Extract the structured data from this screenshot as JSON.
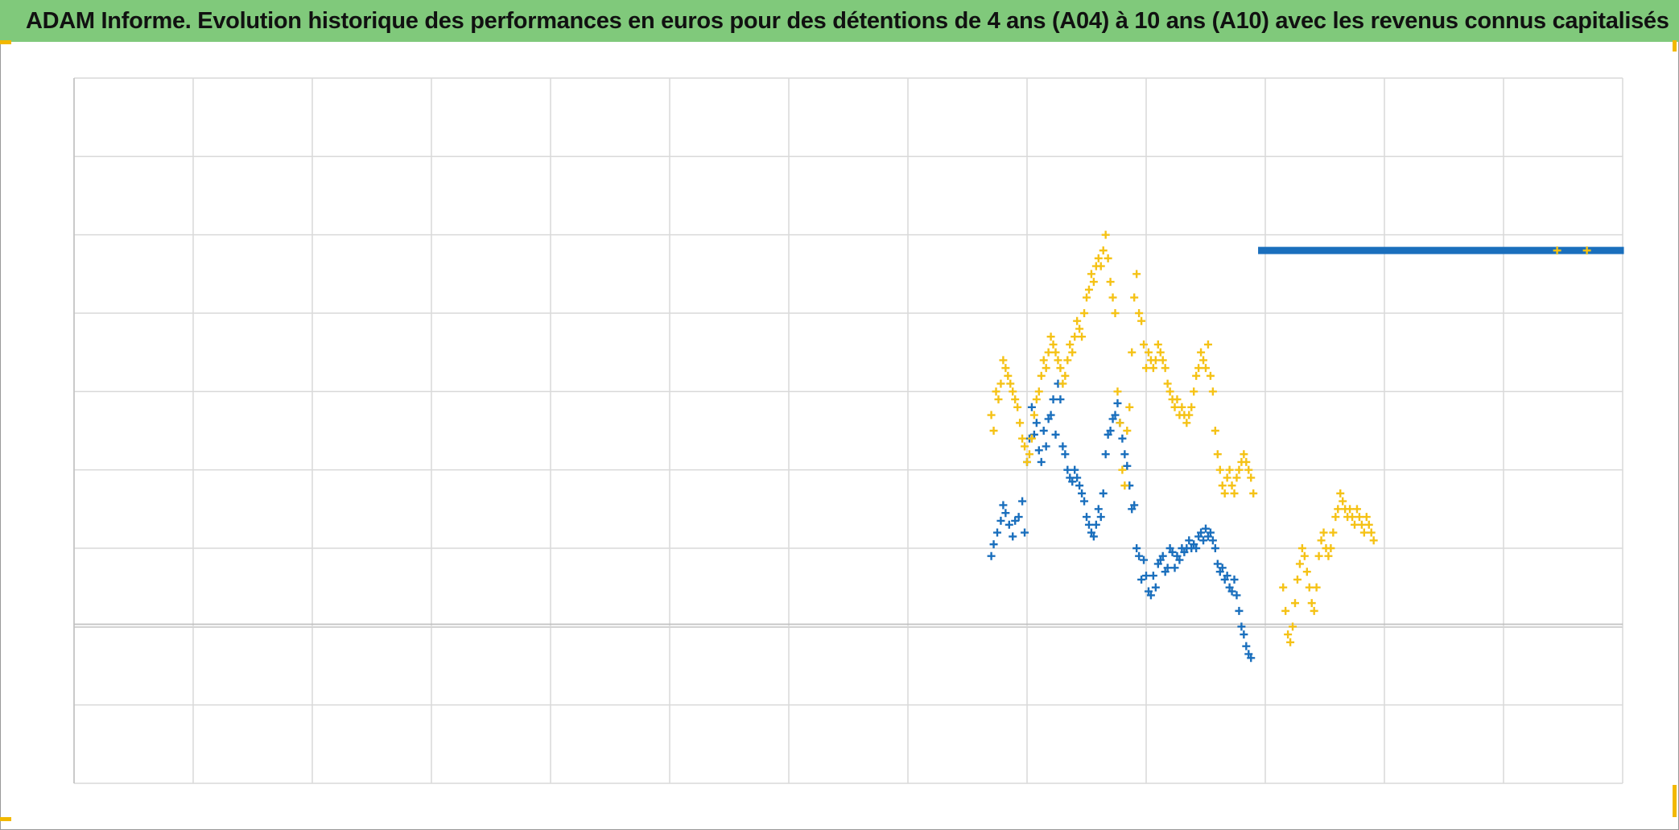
{
  "chart_data": {
    "type": "scatter",
    "title": "ADAM Informe. Evolution historique des performances en euros pour des détentions de 4 ans (A04) à 10 ans (A10) avec les revenus connus capitalisés",
    "xlabel": "",
    "ylabel": "",
    "xlim": [
      0,
      13
    ],
    "ylim": [
      -0.2,
      0.7
    ],
    "grid": true,
    "legend": "none",
    "baseline_y": 0,
    "series": [
      {
        "color": "#1a6fbd",
        "marker": "plus",
        "points": [
          [
            7.7,
            0.09
          ],
          [
            7.72,
            0.105
          ],
          [
            7.75,
            0.12
          ],
          [
            7.78,
            0.135
          ],
          [
            7.8,
            0.155
          ],
          [
            7.82,
            0.145
          ],
          [
            7.85,
            0.13
          ],
          [
            7.88,
            0.115
          ],
          [
            7.9,
            0.135
          ],
          [
            7.93,
            0.14
          ],
          [
            7.96,
            0.16
          ],
          [
            7.98,
            0.12
          ],
          [
            8.0,
            0.21
          ],
          [
            8.02,
            0.24
          ],
          [
            8.04,
            0.28
          ],
          [
            8.06,
            0.245
          ],
          [
            8.08,
            0.26
          ],
          [
            8.1,
            0.225
          ],
          [
            8.12,
            0.21
          ],
          [
            8.14,
            0.25
          ],
          [
            8.16,
            0.23
          ],
          [
            8.18,
            0.265
          ],
          [
            8.2,
            0.27
          ],
          [
            8.22,
            0.29
          ],
          [
            8.24,
            0.245
          ],
          [
            8.26,
            0.31
          ],
          [
            8.28,
            0.29
          ],
          [
            8.3,
            0.23
          ],
          [
            8.32,
            0.22
          ],
          [
            8.34,
            0.2
          ],
          [
            8.36,
            0.19
          ],
          [
            8.38,
            0.185
          ],
          [
            8.4,
            0.2
          ],
          [
            8.42,
            0.19
          ],
          [
            8.44,
            0.18
          ],
          [
            8.46,
            0.17
          ],
          [
            8.48,
            0.16
          ],
          [
            8.5,
            0.14
          ],
          [
            8.52,
            0.13
          ],
          [
            8.54,
            0.12
          ],
          [
            8.56,
            0.115
          ],
          [
            8.58,
            0.13
          ],
          [
            8.6,
            0.15
          ],
          [
            8.62,
            0.14
          ],
          [
            8.64,
            0.17
          ],
          [
            8.66,
            0.22
          ],
          [
            8.68,
            0.245
          ],
          [
            8.7,
            0.25
          ],
          [
            8.72,
            0.265
          ],
          [
            8.74,
            0.27
          ],
          [
            8.76,
            0.285
          ],
          [
            8.78,
            0.26
          ],
          [
            8.8,
            0.24
          ],
          [
            8.82,
            0.22
          ],
          [
            8.84,
            0.205
          ],
          [
            8.86,
            0.18
          ],
          [
            8.88,
            0.15
          ],
          [
            8.9,
            0.155
          ],
          [
            8.92,
            0.1
          ],
          [
            8.94,
            0.09
          ],
          [
            8.96,
            0.06
          ],
          [
            8.98,
            0.085
          ],
          [
            9.0,
            0.065
          ],
          [
            9.02,
            0.045
          ],
          [
            9.04,
            0.04
          ],
          [
            9.06,
            0.065
          ],
          [
            9.08,
            0.05
          ],
          [
            9.1,
            0.08
          ],
          [
            9.12,
            0.085
          ],
          [
            9.14,
            0.09
          ],
          [
            9.16,
            0.07
          ],
          [
            9.18,
            0.075
          ],
          [
            9.2,
            0.1
          ],
          [
            9.22,
            0.095
          ],
          [
            9.24,
            0.075
          ],
          [
            9.26,
            0.09
          ],
          [
            9.28,
            0.085
          ],
          [
            9.3,
            0.1
          ],
          [
            9.32,
            0.095
          ],
          [
            9.34,
            0.1
          ],
          [
            9.36,
            0.11
          ],
          [
            9.38,
            0.1
          ],
          [
            9.4,
            0.105
          ],
          [
            9.42,
            0.1
          ],
          [
            9.44,
            0.115
          ],
          [
            9.46,
            0.12
          ],
          [
            9.48,
            0.11
          ],
          [
            9.5,
            0.125
          ],
          [
            9.52,
            0.115
          ],
          [
            9.54,
            0.12
          ],
          [
            9.56,
            0.11
          ],
          [
            9.58,
            0.1
          ],
          [
            9.6,
            0.08
          ],
          [
            9.62,
            0.07
          ],
          [
            9.64,
            0.075
          ],
          [
            9.66,
            0.06
          ],
          [
            9.68,
            0.065
          ],
          [
            9.7,
            0.05
          ],
          [
            9.72,
            0.045
          ],
          [
            9.74,
            0.06
          ],
          [
            9.76,
            0.04
          ],
          [
            9.78,
            0.02
          ],
          [
            9.8,
            0.0
          ],
          [
            9.82,
            -0.01
          ],
          [
            9.84,
            -0.025
          ],
          [
            9.86,
            -0.035
          ],
          [
            9.88,
            -0.04
          ]
        ]
      },
      {
        "color": "#1a6fbd",
        "marker": "line",
        "points": [
          [
            9.97,
            0.48
          ],
          [
            12.98,
            0.48
          ]
        ]
      },
      {
        "color": "#f5c216",
        "marker": "plus",
        "points": [
          [
            7.7,
            0.27
          ],
          [
            7.72,
            0.25
          ],
          [
            7.74,
            0.3
          ],
          [
            7.76,
            0.29
          ],
          [
            7.78,
            0.31
          ],
          [
            7.8,
            0.34
          ],
          [
            7.82,
            0.33
          ],
          [
            7.84,
            0.32
          ],
          [
            7.86,
            0.31
          ],
          [
            7.88,
            0.3
          ],
          [
            7.9,
            0.29
          ],
          [
            7.92,
            0.28
          ],
          [
            7.94,
            0.26
          ],
          [
            7.96,
            0.24
          ],
          [
            7.98,
            0.23
          ],
          [
            8.0,
            0.21
          ],
          [
            8.02,
            0.22
          ],
          [
            8.04,
            0.24
          ],
          [
            8.06,
            0.27
          ],
          [
            8.08,
            0.29
          ],
          [
            8.1,
            0.3
          ],
          [
            8.12,
            0.32
          ],
          [
            8.14,
            0.34
          ],
          [
            8.16,
            0.33
          ],
          [
            8.18,
            0.35
          ],
          [
            8.2,
            0.37
          ],
          [
            8.22,
            0.36
          ],
          [
            8.24,
            0.35
          ],
          [
            8.26,
            0.34
          ],
          [
            8.28,
            0.33
          ],
          [
            8.3,
            0.31
          ],
          [
            8.32,
            0.32
          ],
          [
            8.34,
            0.34
          ],
          [
            8.36,
            0.36
          ],
          [
            8.38,
            0.35
          ],
          [
            8.4,
            0.37
          ],
          [
            8.42,
            0.39
          ],
          [
            8.44,
            0.38
          ],
          [
            8.46,
            0.37
          ],
          [
            8.48,
            0.4
          ],
          [
            8.5,
            0.42
          ],
          [
            8.52,
            0.43
          ],
          [
            8.54,
            0.45
          ],
          [
            8.56,
            0.44
          ],
          [
            8.58,
            0.46
          ],
          [
            8.6,
            0.47
          ],
          [
            8.62,
            0.46
          ],
          [
            8.64,
            0.48
          ],
          [
            8.66,
            0.5
          ],
          [
            8.68,
            0.47
          ],
          [
            8.7,
            0.44
          ],
          [
            8.72,
            0.42
          ],
          [
            8.74,
            0.4
          ],
          [
            8.76,
            0.3
          ],
          [
            8.78,
            0.26
          ],
          [
            8.8,
            0.2
          ],
          [
            8.82,
            0.18
          ],
          [
            8.84,
            0.25
          ],
          [
            8.86,
            0.28
          ],
          [
            8.88,
            0.35
          ],
          [
            8.9,
            0.42
          ],
          [
            8.92,
            0.45
          ],
          [
            8.94,
            0.4
          ],
          [
            8.96,
            0.39
          ],
          [
            8.98,
            0.36
          ],
          [
            9.0,
            0.33
          ],
          [
            9.02,
            0.35
          ],
          [
            9.04,
            0.34
          ],
          [
            9.06,
            0.33
          ],
          [
            9.08,
            0.34
          ],
          [
            9.1,
            0.36
          ],
          [
            9.12,
            0.35
          ],
          [
            9.14,
            0.34
          ],
          [
            9.16,
            0.33
          ],
          [
            9.18,
            0.31
          ],
          [
            9.2,
            0.3
          ],
          [
            9.22,
            0.29
          ],
          [
            9.24,
            0.28
          ],
          [
            9.26,
            0.29
          ],
          [
            9.28,
            0.27
          ],
          [
            9.3,
            0.28
          ],
          [
            9.32,
            0.27
          ],
          [
            9.34,
            0.26
          ],
          [
            9.36,
            0.27
          ],
          [
            9.38,
            0.28
          ],
          [
            9.4,
            0.3
          ],
          [
            9.42,
            0.32
          ],
          [
            9.44,
            0.33
          ],
          [
            9.46,
            0.35
          ],
          [
            9.48,
            0.34
          ],
          [
            9.5,
            0.33
          ],
          [
            9.52,
            0.36
          ],
          [
            9.54,
            0.32
          ],
          [
            9.56,
            0.3
          ],
          [
            9.58,
            0.25
          ],
          [
            9.6,
            0.22
          ],
          [
            9.62,
            0.2
          ],
          [
            9.64,
            0.18
          ],
          [
            9.66,
            0.17
          ],
          [
            9.68,
            0.19
          ],
          [
            9.7,
            0.2
          ],
          [
            9.72,
            0.18
          ],
          [
            9.74,
            0.17
          ],
          [
            9.76,
            0.19
          ],
          [
            9.78,
            0.2
          ],
          [
            9.8,
            0.21
          ],
          [
            9.82,
            0.22
          ],
          [
            9.84,
            0.21
          ],
          [
            9.86,
            0.2
          ],
          [
            9.88,
            0.19
          ],
          [
            9.9,
            0.17
          ],
          [
            10.15,
            0.05
          ],
          [
            10.17,
            0.02
          ],
          [
            10.19,
            -0.01
          ],
          [
            10.21,
            -0.02
          ],
          [
            10.23,
            0.0
          ],
          [
            10.25,
            0.03
          ],
          [
            10.27,
            0.06
          ],
          [
            10.29,
            0.08
          ],
          [
            10.31,
            0.1
          ],
          [
            10.33,
            0.09
          ],
          [
            10.35,
            0.07
          ],
          [
            10.37,
            0.05
          ],
          [
            10.39,
            0.03
          ],
          [
            10.41,
            0.02
          ],
          [
            10.43,
            0.05
          ],
          [
            10.45,
            0.09
          ],
          [
            10.47,
            0.11
          ],
          [
            10.49,
            0.12
          ],
          [
            10.51,
            0.1
          ],
          [
            10.53,
            0.09
          ],
          [
            10.55,
            0.1
          ],
          [
            10.57,
            0.12
          ],
          [
            10.59,
            0.14
          ],
          [
            10.61,
            0.15
          ],
          [
            10.63,
            0.17
          ],
          [
            10.65,
            0.16
          ],
          [
            10.67,
            0.15
          ],
          [
            10.69,
            0.14
          ],
          [
            10.71,
            0.15
          ],
          [
            10.73,
            0.14
          ],
          [
            10.75,
            0.13
          ],
          [
            10.77,
            0.15
          ],
          [
            10.79,
            0.14
          ],
          [
            10.81,
            0.13
          ],
          [
            10.83,
            0.12
          ],
          [
            10.85,
            0.14
          ],
          [
            10.87,
            0.13
          ],
          [
            10.89,
            0.12
          ],
          [
            10.91,
            0.11
          ],
          [
            12.45,
            0.48
          ],
          [
            12.7,
            0.48
          ]
        ]
      }
    ]
  }
}
